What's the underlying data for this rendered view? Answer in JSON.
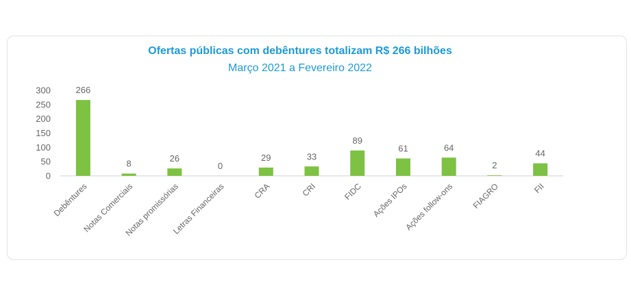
{
  "chart_data": {
    "type": "bar",
    "title": "Ofertas públicas  com debêntures totalizam R$ 266 bilhões",
    "subtitle": "Março 2021 a Fevereiro 2022",
    "categories": [
      "Debêntures",
      "Notas Comerciais",
      "Notas promissórias",
      "Letras Financeiras",
      "CRA",
      "CRI",
      "FIDC",
      "Ações IPOs",
      "Ações follow-ons",
      "FIAGRO",
      "FII"
    ],
    "values": [
      266,
      8,
      26,
      0,
      29,
      33,
      89,
      61,
      64,
      2,
      44
    ],
    "ylim": [
      0,
      300
    ],
    "yticks": [
      0,
      50,
      100,
      150,
      200,
      250,
      300
    ],
    "grid": false,
    "legend": "none",
    "colors": {
      "bar": "#7dc242",
      "title": "#1d9ad6",
      "label": "#666666",
      "axis": "#d0d0d0"
    }
  }
}
